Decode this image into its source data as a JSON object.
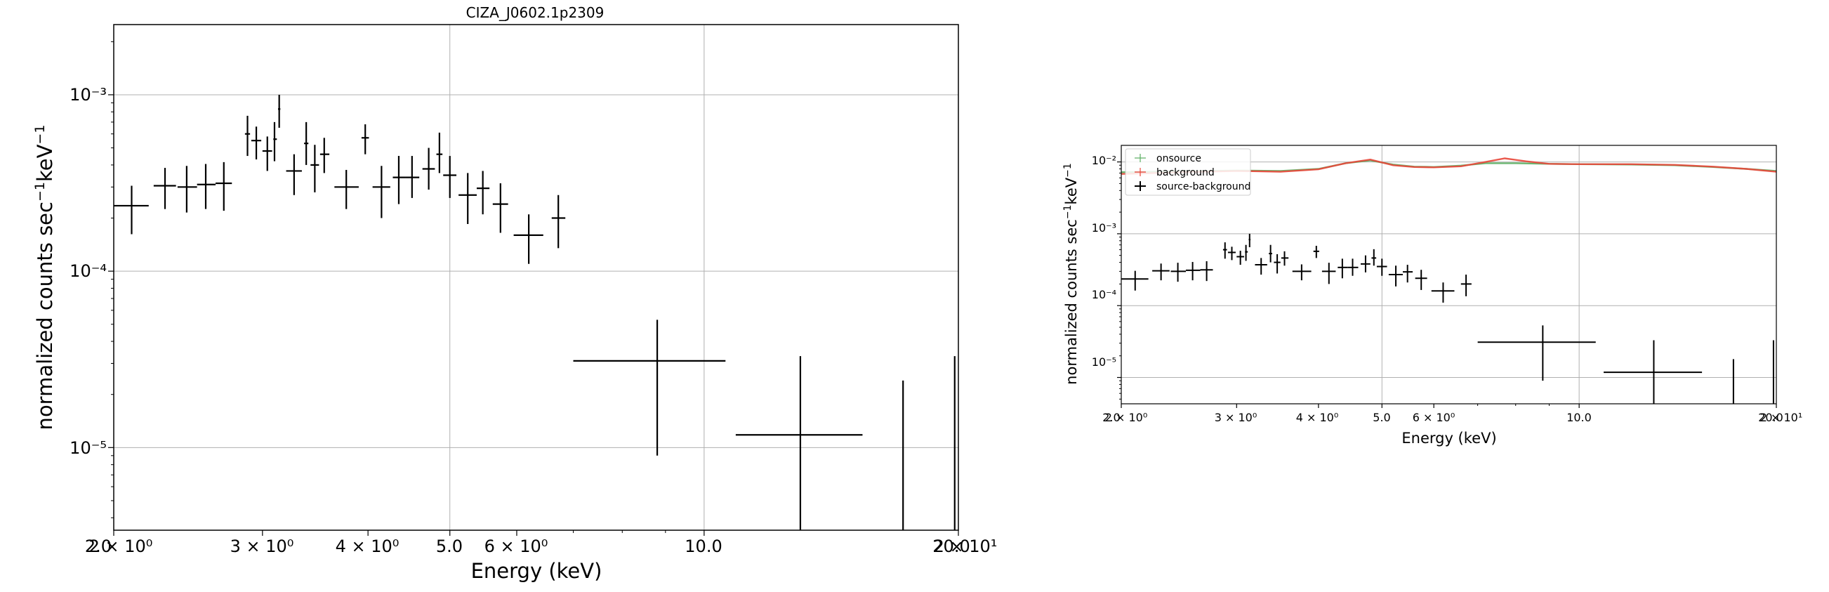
{
  "figure": {
    "panels": [
      {
        "title": "CIZA_J0602.1p2309",
        "xlabel": "Energy (keV)",
        "ylabel": "normalized counts sec",
        "ylabel_sup1": "−1",
        "ylabel_mid": "keV",
        "ylabel_sup2": "−1",
        "x_tick_labels": [
          "2.0",
          "2 × 10⁰",
          "3 × 10⁰",
          "4 × 10⁰",
          "5.0",
          "6 × 10⁰",
          "10.0",
          "20.0",
          "2 × 10¹"
        ],
        "y_tick_labels": [
          "10⁻³",
          "10⁻⁴",
          "10⁻⁵"
        ]
      },
      {
        "xlabel": "Energy (keV)",
        "ylabel": "normalized counts sec",
        "ylabel_sup1": "−1",
        "ylabel_mid": "keV",
        "ylabel_sup2": "−1",
        "x_tick_labels": [
          "2.0",
          "2 × 10⁰",
          "3 × 10⁰",
          "4 × 10⁰",
          "5.0",
          "6 × 10⁰",
          "10.0",
          "20.0",
          "2 × 10¹"
        ],
        "y_tick_labels": [
          "10⁻²",
          "10⁻³",
          "10⁻⁴",
          "10⁻⁵"
        ],
        "legend": [
          "onsource",
          "background",
          "source-background"
        ]
      }
    ]
  },
  "chart_data": [
    {
      "type": "scatter",
      "title": "CIZA_J0602.1p2309",
      "xlabel": "Energy (keV)",
      "ylabel": "normalized counts sec^-1 keV^-1",
      "x_scale": "log",
      "y_scale": "log",
      "xlim": [
        2.0,
        20.0
      ],
      "ylim": [
        3.4e-06,
        0.0025
      ],
      "grid": true,
      "series": [
        {
          "color": "#000000",
          "points": [
            {
              "x": 2.1,
              "xlo": 2.0,
              "xhi": 2.2,
              "y": 0.000235,
              "ylo": 0.000162,
              "yhi": 0.000305
            },
            {
              "x": 2.3,
              "xlo": 2.23,
              "xhi": 2.37,
              "y": 0.000305,
              "ylo": 0.000225,
              "yhi": 0.000385
            },
            {
              "x": 2.44,
              "xlo": 2.38,
              "xhi": 2.51,
              "y": 0.0003,
              "ylo": 0.000215,
              "yhi": 0.000395
            },
            {
              "x": 2.57,
              "xlo": 2.51,
              "xhi": 2.64,
              "y": 0.00031,
              "ylo": 0.000225,
              "yhi": 0.000405
            },
            {
              "x": 2.7,
              "xlo": 2.64,
              "xhi": 2.76,
              "y": 0.000315,
              "ylo": 0.00022,
              "yhi": 0.000415
            },
            {
              "x": 2.88,
              "xlo": 2.86,
              "xhi": 2.9,
              "y": 0.0006,
              "ylo": 0.00045,
              "yhi": 0.00076
            },
            {
              "x": 2.95,
              "xlo": 2.91,
              "xhi": 2.99,
              "y": 0.00055,
              "ylo": 0.00043,
              "yhi": 0.00066
            },
            {
              "x": 3.04,
              "xlo": 3.0,
              "xhi": 3.08,
              "y": 0.00048,
              "ylo": 0.00037,
              "yhi": 0.00058
            },
            {
              "x": 3.1,
              "xlo": 3.09,
              "xhi": 3.12,
              "y": 0.00056,
              "ylo": 0.00042,
              "yhi": 0.0007
            },
            {
              "x": 3.14,
              "xlo": 3.13,
              "xhi": 3.15,
              "y": 0.00083,
              "ylo": 0.00065,
              "yhi": 0.001
            },
            {
              "x": 3.27,
              "xlo": 3.2,
              "xhi": 3.34,
              "y": 0.00037,
              "ylo": 0.00027,
              "yhi": 0.00046
            },
            {
              "x": 3.38,
              "xlo": 3.36,
              "xhi": 3.4,
              "y": 0.00053,
              "ylo": 0.0004,
              "yhi": 0.0007
            },
            {
              "x": 3.46,
              "xlo": 3.42,
              "xhi": 3.5,
              "y": 0.0004,
              "ylo": 0.00028,
              "yhi": 0.00052
            },
            {
              "x": 3.55,
              "xlo": 3.51,
              "xhi": 3.6,
              "y": 0.00046,
              "ylo": 0.00036,
              "yhi": 0.00057
            },
            {
              "x": 3.77,
              "xlo": 3.65,
              "xhi": 3.9,
              "y": 0.0003,
              "ylo": 0.000225,
              "yhi": 0.000375
            },
            {
              "x": 3.97,
              "xlo": 3.93,
              "xhi": 4.01,
              "y": 0.00057,
              "ylo": 0.00046,
              "yhi": 0.00068
            },
            {
              "x": 4.15,
              "xlo": 4.05,
              "xhi": 4.25,
              "y": 0.0003,
              "ylo": 0.0002,
              "yhi": 0.000395
            },
            {
              "x": 4.35,
              "xlo": 4.28,
              "xhi": 4.43,
              "y": 0.00034,
              "ylo": 0.00024,
              "yhi": 0.00045
            },
            {
              "x": 4.51,
              "xlo": 4.43,
              "xhi": 4.6,
              "y": 0.00034,
              "ylo": 0.00026,
              "yhi": 0.00045
            },
            {
              "x": 4.72,
              "xlo": 4.64,
              "xhi": 4.8,
              "y": 0.00038,
              "ylo": 0.00029,
              "yhi": 0.0005
            },
            {
              "x": 4.86,
              "xlo": 4.82,
              "xhi": 4.9,
              "y": 0.00046,
              "ylo": 0.00036,
              "yhi": 0.00061
            },
            {
              "x": 5.0,
              "xlo": 4.91,
              "xhi": 5.09,
              "y": 0.00035,
              "ylo": 0.00026,
              "yhi": 0.00045
            },
            {
              "x": 5.25,
              "xlo": 5.12,
              "xhi": 5.38,
              "y": 0.00027,
              "ylo": 0.000185,
              "yhi": 0.00036
            },
            {
              "x": 5.47,
              "xlo": 5.38,
              "xhi": 5.57,
              "y": 0.000295,
              "ylo": 0.00021,
              "yhi": 0.00037
            },
            {
              "x": 5.74,
              "xlo": 5.62,
              "xhi": 5.86,
              "y": 0.00024,
              "ylo": 0.000165,
              "yhi": 0.000315
            },
            {
              "x": 6.2,
              "xlo": 5.95,
              "xhi": 6.45,
              "y": 0.00016,
              "ylo": 0.00011,
              "yhi": 0.00021
            },
            {
              "x": 6.72,
              "xlo": 6.6,
              "xhi": 6.85,
              "y": 0.0002,
              "ylo": 0.000135,
              "yhi": 0.00027
            },
            {
              "x": 8.8,
              "xlo": 7.0,
              "xhi": 10.6,
              "y": 3.1e-05,
              "ylo": 9e-06,
              "yhi": 5.3e-05
            },
            {
              "x": 13.0,
              "xlo": 10.9,
              "xhi": 15.4,
              "y": 1.18e-05,
              "ylo": 3.4e-06,
              "yhi": 3.3e-05
            },
            {
              "x": 17.2,
              "xlo": 17.2,
              "xhi": 17.2,
              "y": 1e-05,
              "ylo": 3.4e-06,
              "yhi": 2.4e-05
            },
            {
              "x": 19.8,
              "xlo": 19.8,
              "xhi": 19.8,
              "y": 1e-05,
              "ylo": 3.4e-06,
              "yhi": 3.3e-05
            }
          ]
        }
      ]
    },
    {
      "type": "scatter",
      "xlabel": "Energy (keV)",
      "ylabel": "normalized counts sec^-1 keV^-1",
      "x_scale": "log",
      "y_scale": "log",
      "xlim": [
        2.0,
        20.0
      ],
      "ylim": [
        4.3e-06,
        0.017
      ],
      "grid": true,
      "legend_position": "top-left",
      "series": [
        {
          "name": "onsource",
          "color": "#5aae61",
          "line": [
            [
              2.0,
              0.0072
            ],
            [
              2.5,
              0.0074
            ],
            [
              3.0,
              0.0076
            ],
            [
              3.5,
              0.0075
            ],
            [
              4.0,
              0.008
            ],
            [
              4.4,
              0.0096
            ],
            [
              4.8,
              0.0105
            ],
            [
              5.2,
              0.0092
            ],
            [
              5.6,
              0.0086
            ],
            [
              6.0,
              0.0085
            ],
            [
              6.6,
              0.0089
            ],
            [
              7.2,
              0.0096
            ],
            [
              8.0,
              0.0096
            ],
            [
              9.0,
              0.0094
            ],
            [
              10.0,
              0.0093
            ],
            [
              12.0,
              0.0092
            ],
            [
              14.0,
              0.009
            ],
            [
              16.0,
              0.0085
            ],
            [
              18.0,
              0.008
            ],
            [
              20.0,
              0.0075
            ]
          ]
        },
        {
          "name": "background",
          "color": "#e8473a",
          "line": [
            [
              2.0,
              0.0068
            ],
            [
              2.5,
              0.0072
            ],
            [
              3.0,
              0.0075
            ],
            [
              3.5,
              0.0073
            ],
            [
              4.0,
              0.0079
            ],
            [
              4.4,
              0.0096
            ],
            [
              4.8,
              0.0108
            ],
            [
              5.2,
              0.009
            ],
            [
              5.6,
              0.0085
            ],
            [
              6.0,
              0.0084
            ],
            [
              6.6,
              0.0087
            ],
            [
              7.2,
              0.01
            ],
            [
              7.7,
              0.0112
            ],
            [
              8.3,
              0.0102
            ],
            [
              9.0,
              0.0094
            ],
            [
              10.0,
              0.0093
            ],
            [
              12.0,
              0.0093
            ],
            [
              14.0,
              0.0091
            ],
            [
              16.0,
              0.0086
            ],
            [
              18.0,
              0.008
            ],
            [
              20.0,
              0.0073
            ]
          ]
        },
        {
          "name": "source-background",
          "color": "#000000",
          "points": [
            {
              "x": 2.1,
              "xlo": 2.0,
              "xhi": 2.2,
              "y": 0.000235,
              "ylo": 0.000162,
              "yhi": 0.000305
            },
            {
              "x": 2.3,
              "xlo": 2.23,
              "xhi": 2.37,
              "y": 0.000305,
              "ylo": 0.000225,
              "yhi": 0.000385
            },
            {
              "x": 2.44,
              "xlo": 2.38,
              "xhi": 2.51,
              "y": 0.0003,
              "ylo": 0.000215,
              "yhi": 0.000395
            },
            {
              "x": 2.57,
              "xlo": 2.51,
              "xhi": 2.64,
              "y": 0.00031,
              "ylo": 0.000225,
              "yhi": 0.000405
            },
            {
              "x": 2.7,
              "xlo": 2.64,
              "xhi": 2.76,
              "y": 0.000315,
              "ylo": 0.00022,
              "yhi": 0.000415
            },
            {
              "x": 2.88,
              "xlo": 2.86,
              "xhi": 2.9,
              "y": 0.0006,
              "ylo": 0.00045,
              "yhi": 0.00076
            },
            {
              "x": 2.95,
              "xlo": 2.91,
              "xhi": 2.99,
              "y": 0.00055,
              "ylo": 0.00043,
              "yhi": 0.00066
            },
            {
              "x": 3.04,
              "xlo": 3.0,
              "xhi": 3.08,
              "y": 0.00048,
              "ylo": 0.00037,
              "yhi": 0.00058
            },
            {
              "x": 3.1,
              "xlo": 3.09,
              "xhi": 3.12,
              "y": 0.00056,
              "ylo": 0.00042,
              "yhi": 0.0007
            },
            {
              "x": 3.14,
              "xlo": 3.13,
              "xhi": 3.15,
              "y": 0.00083,
              "ylo": 0.00065,
              "yhi": 0.001
            },
            {
              "x": 3.27,
              "xlo": 3.2,
              "xhi": 3.34,
              "y": 0.00037,
              "ylo": 0.00027,
              "yhi": 0.00046
            },
            {
              "x": 3.38,
              "xlo": 3.36,
              "xhi": 3.4,
              "y": 0.00053,
              "ylo": 0.0004,
              "yhi": 0.0007
            },
            {
              "x": 3.46,
              "xlo": 3.42,
              "xhi": 3.5,
              "y": 0.0004,
              "ylo": 0.00028,
              "yhi": 0.00052
            },
            {
              "x": 3.55,
              "xlo": 3.51,
              "xhi": 3.6,
              "y": 0.00046,
              "ylo": 0.00036,
              "yhi": 0.00057
            },
            {
              "x": 3.77,
              "xlo": 3.65,
              "xhi": 3.9,
              "y": 0.0003,
              "ylo": 0.000225,
              "yhi": 0.000375
            },
            {
              "x": 3.97,
              "xlo": 3.93,
              "xhi": 4.01,
              "y": 0.00057,
              "ylo": 0.00046,
              "yhi": 0.00068
            },
            {
              "x": 4.15,
              "xlo": 4.05,
              "xhi": 4.25,
              "y": 0.0003,
              "ylo": 0.0002,
              "yhi": 0.000395
            },
            {
              "x": 4.35,
              "xlo": 4.28,
              "xhi": 4.43,
              "y": 0.00034,
              "ylo": 0.00024,
              "yhi": 0.00045
            },
            {
              "x": 4.51,
              "xlo": 4.43,
              "xhi": 4.6,
              "y": 0.00034,
              "ylo": 0.00026,
              "yhi": 0.00045
            },
            {
              "x": 4.72,
              "xlo": 4.64,
              "xhi": 4.8,
              "y": 0.00038,
              "ylo": 0.00029,
              "yhi": 0.0005
            },
            {
              "x": 4.86,
              "xlo": 4.82,
              "xhi": 4.9,
              "y": 0.00046,
              "ylo": 0.00036,
              "yhi": 0.00061
            },
            {
              "x": 5.0,
              "xlo": 4.91,
              "xhi": 5.09,
              "y": 0.00035,
              "ylo": 0.00026,
              "yhi": 0.00045
            },
            {
              "x": 5.25,
              "xlo": 5.12,
              "xhi": 5.38,
              "y": 0.00027,
              "ylo": 0.000185,
              "yhi": 0.00036
            },
            {
              "x": 5.47,
              "xlo": 5.38,
              "xhi": 5.57,
              "y": 0.000295,
              "ylo": 0.00021,
              "yhi": 0.00037
            },
            {
              "x": 5.74,
              "xlo": 5.62,
              "xhi": 5.86,
              "y": 0.00024,
              "ylo": 0.000165,
              "yhi": 0.000315
            },
            {
              "x": 6.2,
              "xlo": 5.95,
              "xhi": 6.45,
              "y": 0.00016,
              "ylo": 0.00011,
              "yhi": 0.00021
            },
            {
              "x": 6.72,
              "xlo": 6.6,
              "xhi": 6.85,
              "y": 0.0002,
              "ylo": 0.000135,
              "yhi": 0.00027
            },
            {
              "x": 8.8,
              "xlo": 7.0,
              "xhi": 10.6,
              "y": 3.1e-05,
              "ylo": 9e-06,
              "yhi": 5.3e-05
            },
            {
              "x": 13.0,
              "xlo": 10.9,
              "xhi": 15.4,
              "y": 1.18e-05,
              "ylo": 4.3e-06,
              "yhi": 3.3e-05
            },
            {
              "x": 17.2,
              "xlo": 15.8,
              "xhi": 18.7,
              "y": 3.3e-06,
              "ylo": 4.3e-06,
              "yhi": 1.8e-05
            },
            {
              "x": 19.8,
              "xlo": 19.8,
              "xhi": 19.8,
              "y": 1e-05,
              "ylo": 4.3e-06,
              "yhi": 3.3e-05
            }
          ]
        }
      ]
    }
  ]
}
